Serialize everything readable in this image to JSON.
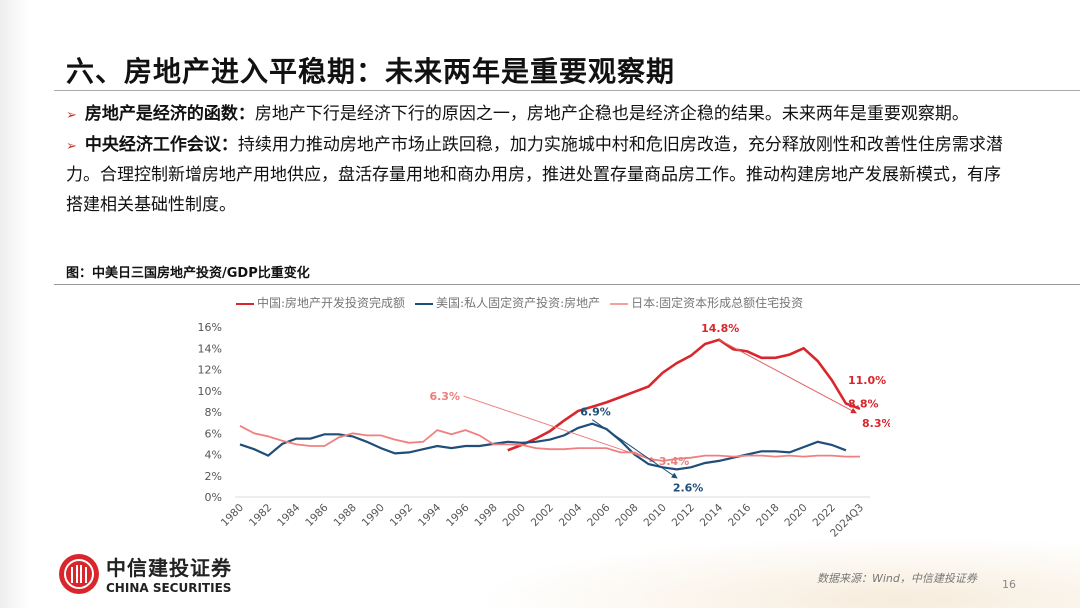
{
  "title": "六、房地产进入平稳期：未来两年是重要观察期",
  "bullets": [
    {
      "head": "房地产是经济的函数：",
      "text": "房地产下行是经济下行的原因之一，房地产企稳也是经济企稳的结果。未来两年是重要观察期。"
    },
    {
      "head": "中央经济工作会议：",
      "text": "持续用力推动房地产市场止跌回稳，加力实施城中村和危旧房改造，充分释放刚性和改善性住房需求潜力。合理控制新增房地产用地供应，盘活存量用地和商办用房，推进处置存量商品房工作。推动构建房地产发展新模式，有序搭建相关基础性制度。"
    }
  ],
  "chart_caption": "图：中美日三国房地产投资/GDP比重变化",
  "chart_data": {
    "type": "line",
    "title": "",
    "xlabel": "",
    "ylabel": "",
    "ylim": [
      0,
      16
    ],
    "yticks": [
      "0%",
      "2%",
      "4%",
      "6%",
      "8%",
      "10%",
      "12%",
      "14%",
      "16%"
    ],
    "x": [
      "1980",
      "1981",
      "1982",
      "1983",
      "1984",
      "1985",
      "1986",
      "1987",
      "1988",
      "1989",
      "1990",
      "1991",
      "1992",
      "1993",
      "1994",
      "1995",
      "1996",
      "1997",
      "1998",
      "1999",
      "2000",
      "2001",
      "2002",
      "2003",
      "2004",
      "2005",
      "2006",
      "2007",
      "2008",
      "2009",
      "2010",
      "2011",
      "2012",
      "2013",
      "2014",
      "2015",
      "2016",
      "2017",
      "2018",
      "2019",
      "2020",
      "2021",
      "2022",
      "2023",
      "2024Q3"
    ],
    "xtick_labels": [
      "1980",
      "1982",
      "1984",
      "1986",
      "1988",
      "1990",
      "1992",
      "1994",
      "1996",
      "1998",
      "2000",
      "2002",
      "2004",
      "2006",
      "2008",
      "2010",
      "2012",
      "2014",
      "2016",
      "2018",
      "2020",
      "2022",
      "2024Q3"
    ],
    "legend_position": "top",
    "grid": false,
    "series": [
      {
        "name": "中国:房地产开发投资完成额",
        "color": "#d9262c",
        "values": [
          null,
          null,
          null,
          null,
          null,
          null,
          null,
          null,
          null,
          null,
          null,
          null,
          null,
          null,
          null,
          null,
          null,
          null,
          null,
          4.4,
          4.9,
          5.5,
          6.2,
          7.2,
          8.1,
          8.5,
          8.9,
          9.4,
          9.9,
          10.4,
          11.7,
          12.6,
          13.3,
          14.4,
          14.8,
          13.9,
          13.7,
          13.1,
          13.1,
          13.4,
          14.0,
          12.8,
          11.0,
          8.8,
          8.3
        ]
      },
      {
        "name": "美国:私人固定资产投资:房地产",
        "color": "#1f4e79",
        "values": [
          4.95,
          4.5,
          3.9,
          5.0,
          5.5,
          5.5,
          5.9,
          5.9,
          5.7,
          5.2,
          4.6,
          4.1,
          4.2,
          4.5,
          4.8,
          4.6,
          4.8,
          4.8,
          5.0,
          5.2,
          5.1,
          5.2,
          5.4,
          5.8,
          6.5,
          6.9,
          6.4,
          5.3,
          4.0,
          3.1,
          2.8,
          2.6,
          2.8,
          3.2,
          3.4,
          3.7,
          4.0,
          4.3,
          4.3,
          4.2,
          4.7,
          5.2,
          4.9,
          4.4,
          null
        ]
      },
      {
        "name": "日本:固定资本形成总额住宅投资",
        "color": "#f08080",
        "values": [
          6.7,
          6.0,
          5.7,
          5.3,
          4.95,
          4.8,
          4.8,
          5.6,
          6.0,
          5.8,
          5.8,
          5.4,
          5.1,
          5.2,
          6.3,
          5.9,
          6.3,
          5.8,
          4.95,
          4.95,
          4.9,
          4.6,
          4.5,
          4.5,
          4.6,
          4.6,
          4.6,
          4.2,
          4.2,
          3.6,
          3.4,
          3.6,
          3.7,
          3.9,
          3.9,
          3.8,
          3.9,
          3.9,
          3.8,
          3.9,
          3.8,
          3.9,
          3.9,
          3.8,
          3.8
        ]
      }
    ],
    "annotations": [
      {
        "text": "6.3%",
        "series": 2,
        "from": "1996",
        "to": "2010",
        "to_text": "3.4%"
      },
      {
        "text": "6.9%",
        "series": 1,
        "from": "2005",
        "to": "2011",
        "to_text": "2.6%"
      },
      {
        "text": "14.8%",
        "series": 0,
        "from": "2014",
        "to": "2024Q3",
        "to_text": "8.3%"
      }
    ],
    "extra_labels": [
      {
        "text": "11.0%",
        "series": 0,
        "at": "2022"
      },
      {
        "text": "8.8%",
        "series": 0,
        "at": "2023"
      }
    ]
  },
  "footer": {
    "logo_cn": "中信建投证券",
    "logo_en": "CHINA SECURITIES",
    "source": "数据来源：Wind，中信建投证券",
    "page": "16"
  },
  "colors": {
    "accent": "#c0392b"
  }
}
